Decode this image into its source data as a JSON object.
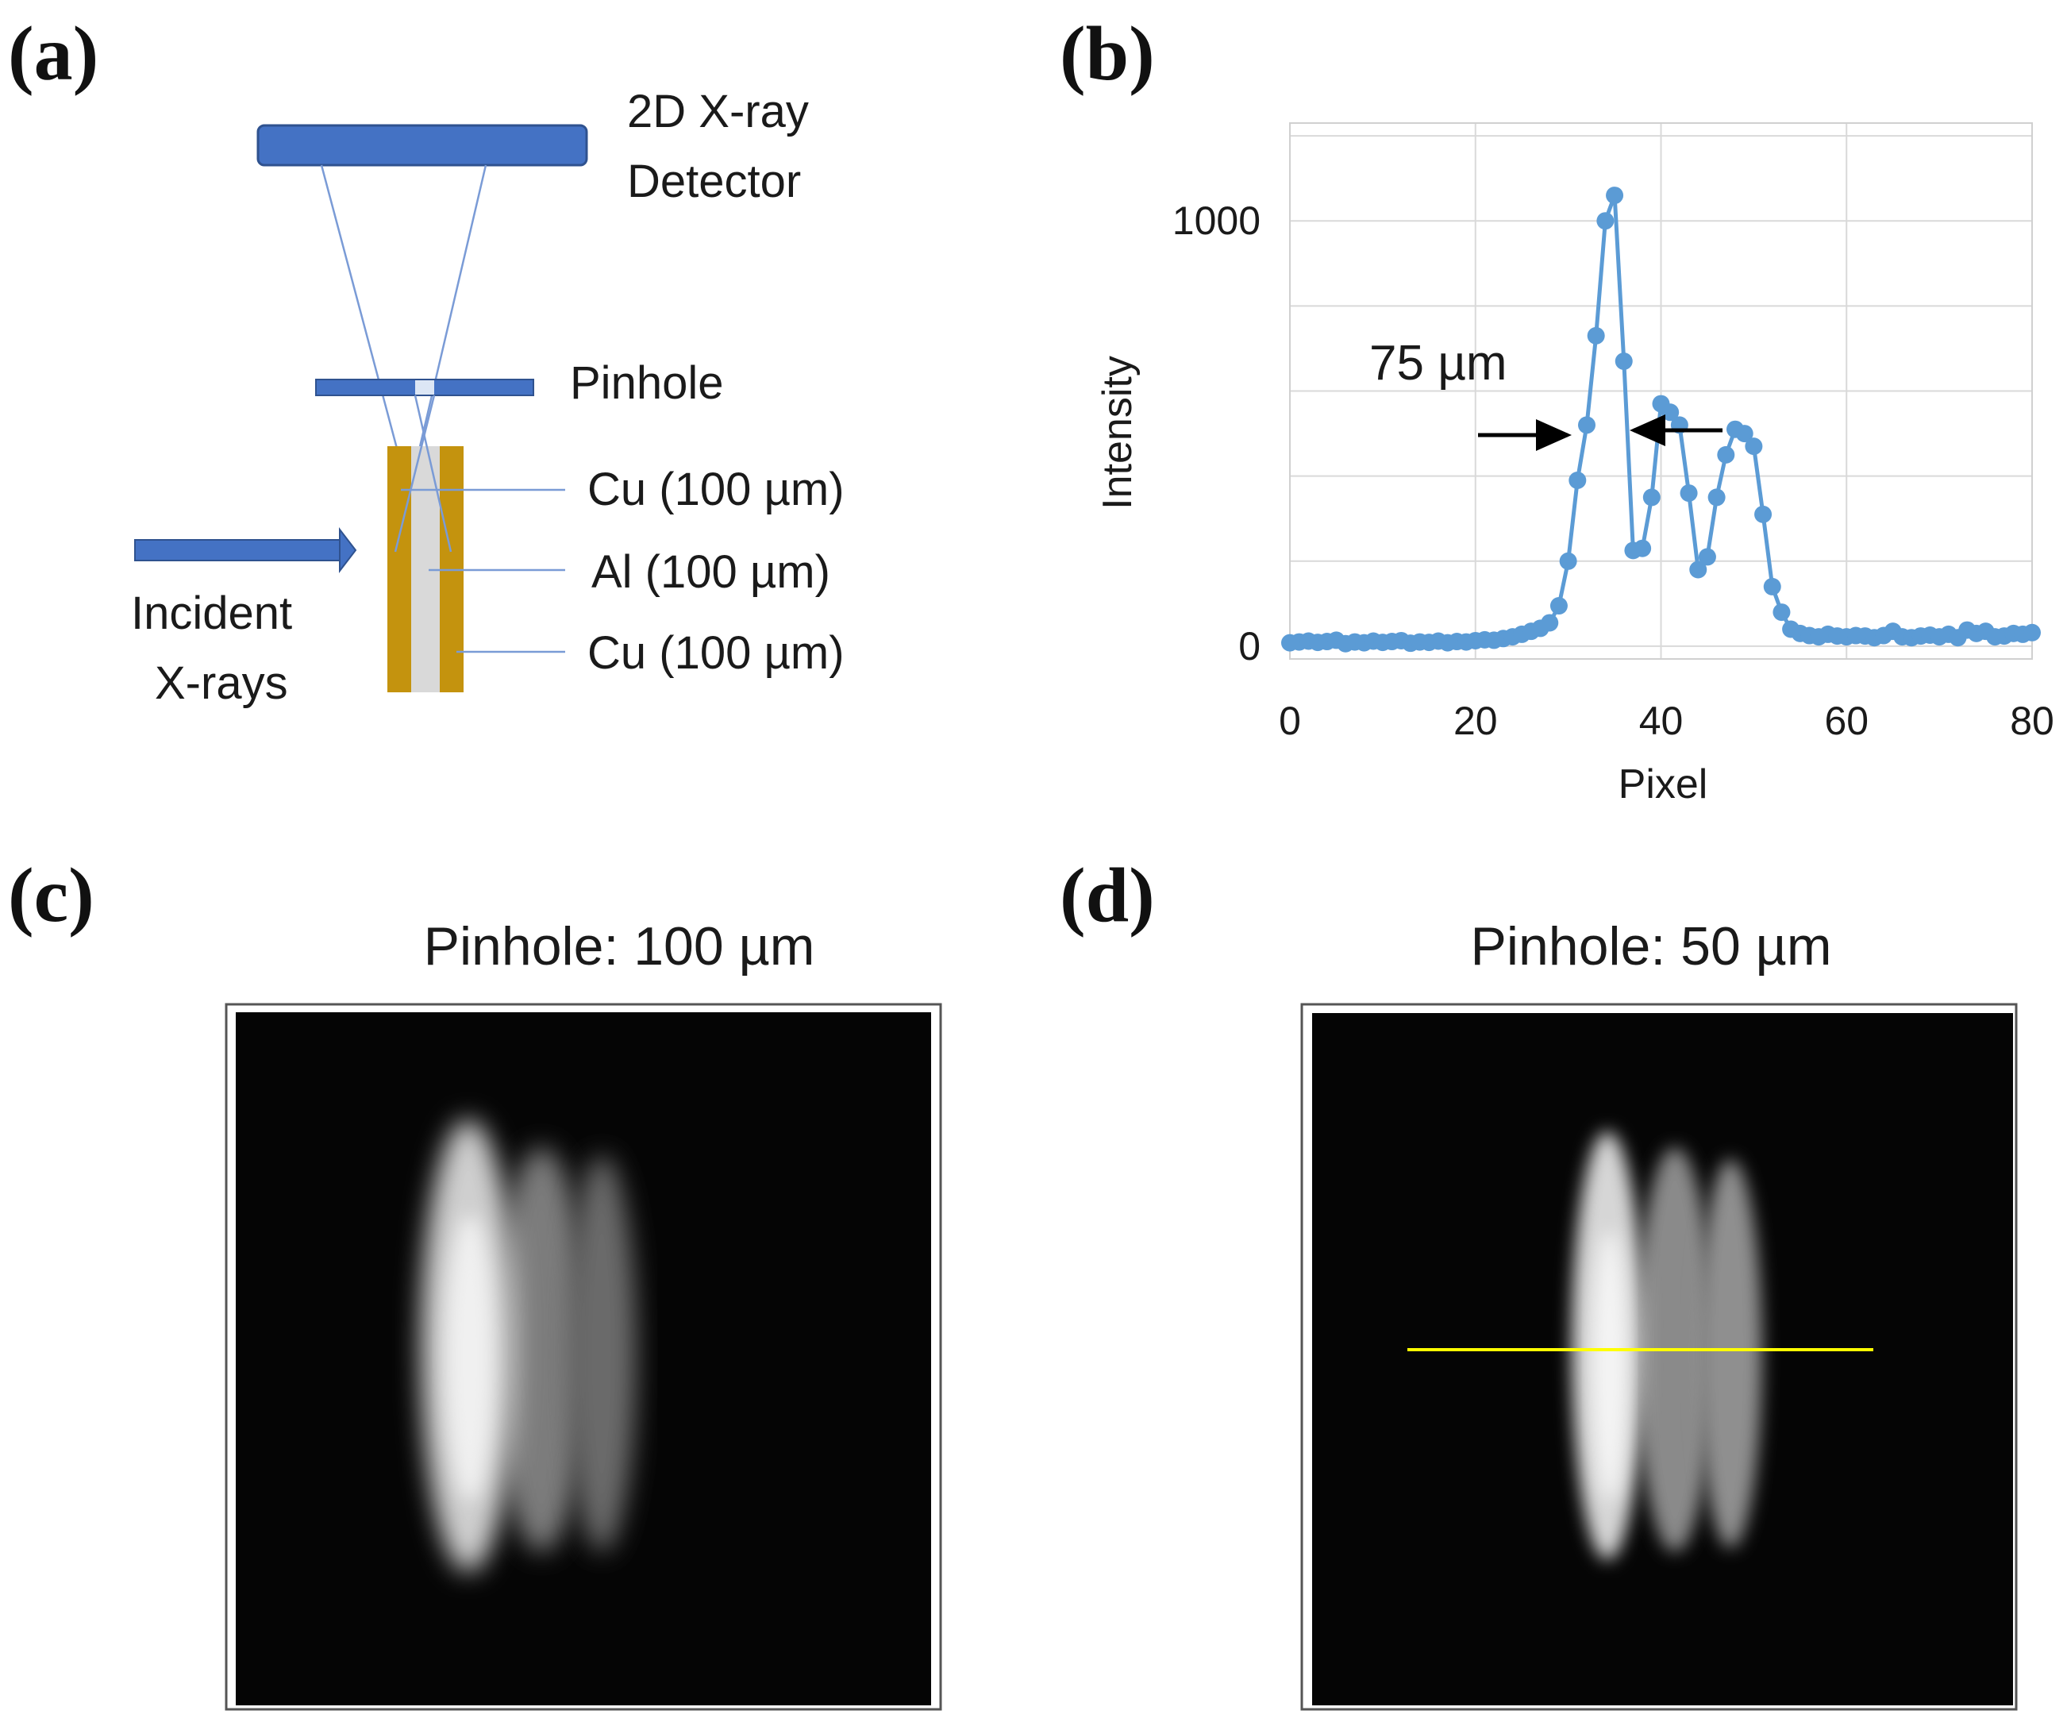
{
  "panel_labels": {
    "a": "(a)",
    "b": "(b)",
    "c": "(c)",
    "d": "(d)"
  },
  "panel_a": {
    "detector_label": [
      "2D X-ray",
      "Detector"
    ],
    "pinhole_label": "Pinhole",
    "layer_labels": [
      "Cu (100 µm)",
      "Al (100 µm)",
      "Cu (100 µm)"
    ],
    "incident_label": [
      "Incident",
      "X-rays"
    ],
    "colors": {
      "blue": "#4472c4",
      "copper": "#c4930e",
      "aluminum": "#d9d9d9"
    }
  },
  "panel_c": {
    "title": "Pinhole: 100 µm"
  },
  "panel_d": {
    "title": "Pinhole: 50 µm",
    "line_color": "#ffff00"
  },
  "chart_data": {
    "type": "line",
    "title": "",
    "xlabel": "Pixel",
    "ylabel": "Intensity",
    "xlim": [
      0,
      80
    ],
    "ylim": [
      -30,
      1230
    ],
    "xticks": [
      0,
      20,
      40,
      60,
      80
    ],
    "yticks": [
      0,
      1000
    ],
    "grid_y": [
      0,
      200,
      400,
      600,
      800,
      1000,
      1200
    ],
    "grid": true,
    "color": "#5b9bd5",
    "annotation": "75 µm",
    "series": [
      {
        "name": "Intensity",
        "x": [
          0,
          1,
          2,
          3,
          4,
          5,
          6,
          7,
          8,
          9,
          10,
          11,
          12,
          13,
          14,
          15,
          16,
          17,
          18,
          19,
          20,
          21,
          22,
          23,
          24,
          25,
          26,
          27,
          28,
          29,
          30,
          31,
          32,
          33,
          34,
          35,
          36,
          37,
          38,
          39,
          40,
          41,
          42,
          43,
          44,
          45,
          46,
          47,
          48,
          49,
          50,
          51,
          52,
          53,
          54,
          55,
          56,
          57,
          58,
          59,
          60,
          61,
          62,
          63,
          64,
          65,
          66,
          67,
          68,
          69,
          70,
          71,
          72,
          73,
          74,
          75,
          76,
          77,
          78,
          79,
          80
        ],
        "values": [
          8,
          10,
          12,
          9,
          11,
          14,
          6,
          10,
          8,
          12,
          9,
          11,
          13,
          7,
          10,
          9,
          12,
          8,
          11,
          10,
          13,
          15,
          14,
          18,
          22,
          28,
          35,
          42,
          55,
          95,
          200,
          390,
          520,
          730,
          1000,
          1060,
          670,
          225,
          230,
          350,
          570,
          550,
          520,
          360,
          180,
          210,
          350,
          450,
          510,
          500,
          470,
          310,
          140,
          80,
          40,
          30,
          25,
          22,
          28,
          24,
          22,
          25,
          24,
          20,
          25,
          35,
          22,
          20,
          24,
          26,
          22,
          28,
          20,
          38,
          30,
          35,
          22,
          24,
          30,
          28,
          32
        ]
      }
    ]
  }
}
